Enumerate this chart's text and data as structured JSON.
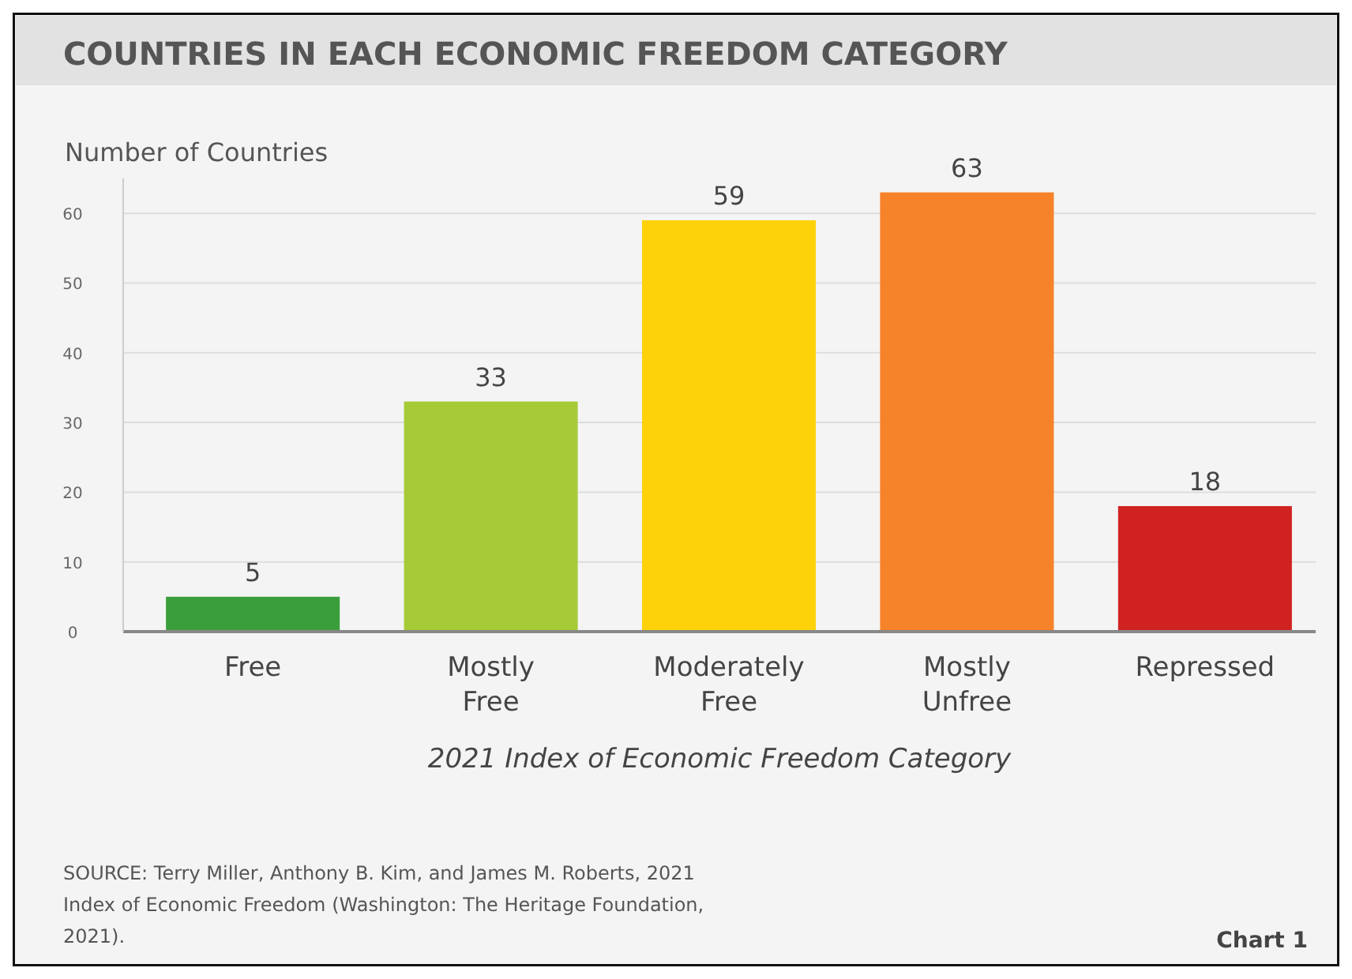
{
  "chart_data": {
    "type": "bar",
    "title": "COUNTRIES IN EACH ECONOMIC FREEDOM CATEGORY",
    "ylabel": "Number of Countries",
    "xlabel": "2021 Index of Economic Freedom Category",
    "categories": [
      "Free",
      "Mostly Free",
      "Moderately Free",
      "Mostly Unfree",
      "Repressed"
    ],
    "values": [
      5,
      33,
      59,
      63,
      18
    ],
    "colors": [
      "#3a9e3a",
      "#a6cb37",
      "#fdd20a",
      "#f6822a",
      "#cf2221"
    ],
    "ylim": [
      0,
      65
    ],
    "yticks": [
      0,
      10,
      20,
      30,
      40,
      50,
      60
    ],
    "grid": "y",
    "data_labels": true,
    "annotations": [
      "SOURCE: Terry Miller, Anthony B. Kim, and James M. Roberts, 2021 Index of Economic Freedom (Washington: The Heritage Foundation, 2021).",
      "Chart 1"
    ]
  }
}
